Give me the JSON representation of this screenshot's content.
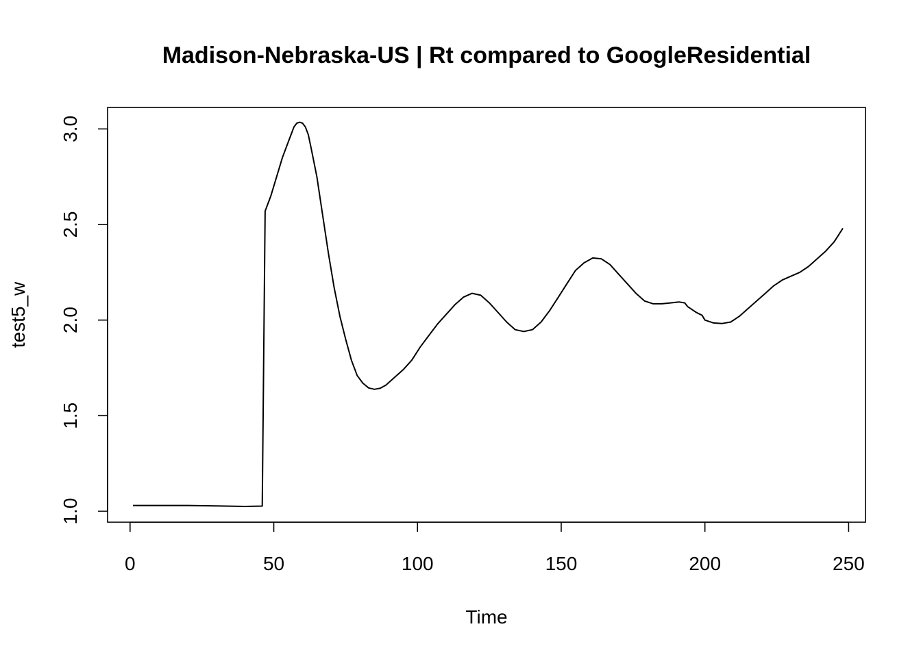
{
  "chart_data": {
    "type": "line",
    "title": "Madison-Nebraska-US | Rt compared to GoogleResidential",
    "xlabel": "Time",
    "ylabel": "test5_w",
    "xlim": [
      1,
      248
    ],
    "ylim": [
      1.0,
      3.03
    ],
    "xticks": [
      0,
      50,
      100,
      150,
      200,
      250
    ],
    "yticks": [
      1.0,
      1.5,
      2.0,
      2.5,
      3.0
    ],
    "xtick_labels": [
      "0",
      "50",
      "100",
      "150",
      "200",
      "250"
    ],
    "ytick_labels": [
      "1.0",
      "1.5",
      "2.0",
      "2.5",
      "3.0"
    ],
    "grid": false,
    "series": [
      {
        "points": [
          [
            1,
            1.03
          ],
          [
            10,
            1.03
          ],
          [
            20,
            1.03
          ],
          [
            30,
            1.028
          ],
          [
            40,
            1.025
          ],
          [
            46,
            1.027
          ],
          [
            47,
            2.57
          ],
          [
            49,
            2.65
          ],
          [
            51,
            2.75
          ],
          [
            53,
            2.85
          ],
          [
            55,
            2.93
          ],
          [
            57,
            3.01
          ],
          [
            58,
            3.03
          ],
          [
            59,
            3.035
          ],
          [
            60,
            3.03
          ],
          [
            61,
            3.01
          ],
          [
            62,
            2.97
          ],
          [
            63,
            2.9
          ],
          [
            65,
            2.75
          ],
          [
            67,
            2.55
          ],
          [
            69,
            2.35
          ],
          [
            71,
            2.17
          ],
          [
            73,
            2.02
          ],
          [
            75,
            1.9
          ],
          [
            77,
            1.79
          ],
          [
            79,
            1.71
          ],
          [
            81,
            1.67
          ],
          [
            83,
            1.645
          ],
          [
            85,
            1.638
          ],
          [
            87,
            1.643
          ],
          [
            89,
            1.66
          ],
          [
            92,
            1.7
          ],
          [
            95,
            1.74
          ],
          [
            98,
            1.79
          ],
          [
            101,
            1.86
          ],
          [
            104,
            1.92
          ],
          [
            107,
            1.98
          ],
          [
            110,
            2.03
          ],
          [
            113,
            2.08
          ],
          [
            116,
            2.12
          ],
          [
            119,
            2.14
          ],
          [
            122,
            2.13
          ],
          [
            125,
            2.09
          ],
          [
            128,
            2.04
          ],
          [
            131,
            1.99
          ],
          [
            134,
            1.95
          ],
          [
            137,
            1.94
          ],
          [
            140,
            1.95
          ],
          [
            143,
            1.99
          ],
          [
            146,
            2.05
          ],
          [
            149,
            2.12
          ],
          [
            152,
            2.19
          ],
          [
            155,
            2.26
          ],
          [
            158,
            2.3
          ],
          [
            161,
            2.325
          ],
          [
            164,
            2.32
          ],
          [
            167,
            2.29
          ],
          [
            170,
            2.24
          ],
          [
            173,
            2.19
          ],
          [
            176,
            2.14
          ],
          [
            179,
            2.1
          ],
          [
            182,
            2.085
          ],
          [
            185,
            2.085
          ],
          [
            188,
            2.09
          ],
          [
            191,
            2.095
          ],
          [
            193,
            2.09
          ],
          [
            194,
            2.07
          ],
          [
            197,
            2.04
          ],
          [
            199,
            2.025
          ],
          [
            200,
            2.0
          ],
          [
            203,
            1.985
          ],
          [
            206,
            1.982
          ],
          [
            209,
            1.99
          ],
          [
            212,
            2.02
          ],
          [
            215,
            2.06
          ],
          [
            218,
            2.1
          ],
          [
            221,
            2.14
          ],
          [
            224,
            2.18
          ],
          [
            227,
            2.21
          ],
          [
            230,
            2.23
          ],
          [
            233,
            2.25
          ],
          [
            236,
            2.28
          ],
          [
            239,
            2.32
          ],
          [
            242,
            2.36
          ],
          [
            245,
            2.41
          ],
          [
            248,
            2.48
          ]
        ]
      }
    ]
  }
}
